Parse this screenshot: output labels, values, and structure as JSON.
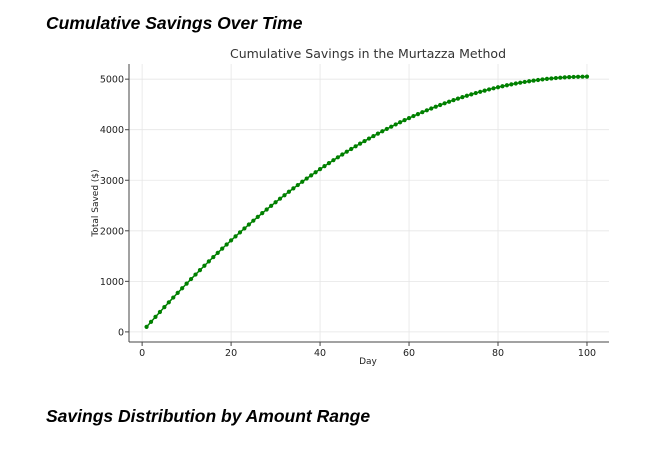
{
  "page": {
    "heading_top": "Cumulative Savings Over Time",
    "heading_bottom": "Savings Distribution by Amount Range"
  },
  "chart_data": {
    "type": "line",
    "title": "Cumulative Savings in the Murtazza Method",
    "xlabel": "Day",
    "ylabel": "Total Saved ($)",
    "xlim": [
      -2.95,
      104.95
    ],
    "ylim": [
      -200,
      5300
    ],
    "x_ticks": [
      0,
      20,
      40,
      60,
      80,
      100
    ],
    "y_ticks": [
      0,
      1000,
      2000,
      3000,
      4000,
      5000
    ],
    "grid": true,
    "legend": "none",
    "colors": {
      "series": "#008000",
      "grid": "#e6e6e6",
      "axis": "#444444"
    },
    "series": [
      {
        "marker": "circle",
        "x": [
          1,
          2,
          3,
          4,
          5,
          6,
          7,
          8,
          9,
          10,
          11,
          12,
          13,
          14,
          15,
          16,
          17,
          18,
          19,
          20,
          21,
          22,
          23,
          24,
          25,
          26,
          27,
          28,
          29,
          30,
          31,
          32,
          33,
          34,
          35,
          36,
          37,
          38,
          39,
          40,
          41,
          42,
          43,
          44,
          45,
          46,
          47,
          48,
          49,
          50,
          51,
          52,
          53,
          54,
          55,
          56,
          57,
          58,
          59,
          60,
          61,
          62,
          63,
          64,
          65,
          66,
          67,
          68,
          69,
          70,
          71,
          72,
          73,
          74,
          75,
          76,
          77,
          78,
          79,
          80,
          81,
          82,
          83,
          84,
          85,
          86,
          87,
          88,
          89,
          90,
          91,
          92,
          93,
          94,
          95,
          96,
          97,
          98,
          99,
          100
        ],
        "y": [
          100,
          199,
          297,
          394,
          490,
          585,
          679,
          772,
          864,
          955,
          1045,
          1134,
          1222,
          1309,
          1395,
          1480,
          1564,
          1647,
          1729,
          1810,
          1890,
          1969,
          2047,
          2124,
          2200,
          2275,
          2349,
          2422,
          2494,
          2565,
          2635,
          2704,
          2772,
          2839,
          2905,
          2970,
          3034,
          3097,
          3159,
          3220,
          3280,
          3339,
          3397,
          3454,
          3510,
          3565,
          3619,
          3672,
          3724,
          3775,
          3825,
          3874,
          3922,
          3969,
          4015,
          4060,
          4104,
          4147,
          4189,
          4230,
          4270,
          4309,
          4347,
          4384,
          4420,
          4455,
          4489,
          4522,
          4554,
          4585,
          4615,
          4644,
          4672,
          4699,
          4725,
          4750,
          4774,
          4797,
          4819,
          4840,
          4860,
          4879,
          4897,
          4914,
          4930,
          4945,
          4959,
          4972,
          4984,
          4995,
          5005,
          5014,
          5022,
          5029,
          5035,
          5040,
          5044,
          5047,
          5049,
          5050
        ]
      }
    ]
  }
}
